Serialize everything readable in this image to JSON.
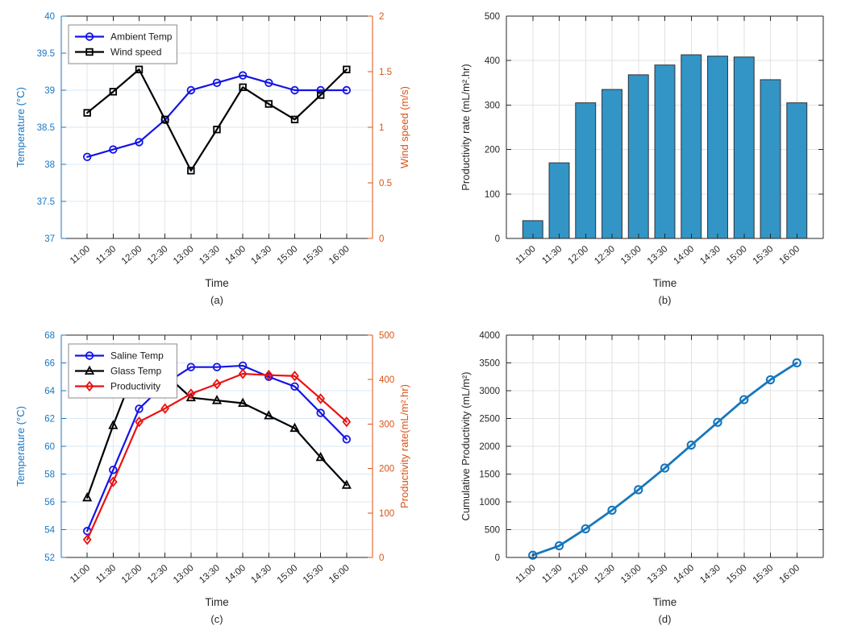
{
  "figure": {
    "background": "#ffffff",
    "panel_captions": [
      "(a)",
      "(b)",
      "(c)",
      "(d)"
    ]
  },
  "chart_data": [
    {
      "id": "a",
      "type": "line",
      "caption": "(a)",
      "xlabel": "Time",
      "grid": true,
      "legend": {
        "position": "top-left"
      },
      "categories": [
        "11:00",
        "11:30",
        "12:00",
        "12:30",
        "13:00",
        "13:30",
        "14:00",
        "14:30",
        "15:00",
        "15:30",
        "16:00"
      ],
      "axes": {
        "left": {
          "label": "Temperature (°C)",
          "min": 37,
          "max": 40,
          "step": 0.5,
          "color": "#1877C4"
        },
        "right": {
          "label": "Wind speed (m/s)",
          "min": 0,
          "max": 2,
          "step": 0.5,
          "color": "#D95319"
        }
      },
      "series": [
        {
          "name": "Ambient Temp",
          "axis": "left",
          "color": "#1414E6",
          "marker": "circle",
          "values": [
            38.1,
            38.2,
            38.3,
            38.6,
            39.0,
            39.1,
            39.2,
            39.1,
            39.0,
            39.0,
            39.0
          ]
        },
        {
          "name": "Wind speed",
          "axis": "right",
          "color": "#000000",
          "marker": "square",
          "values": [
            1.13,
            1.32,
            1.52,
            1.07,
            0.61,
            0.98,
            1.36,
            1.21,
            1.07,
            1.29,
            1.52
          ]
        }
      ]
    },
    {
      "id": "b",
      "type": "bar",
      "caption": "(b)",
      "xlabel": "Time",
      "grid": true,
      "categories": [
        "11:00",
        "11:30",
        "12:00",
        "12:30",
        "13:00",
        "13:30",
        "14:00",
        "14:30",
        "15:00",
        "15:30",
        "16:00"
      ],
      "axes": {
        "left": {
          "label": "Productivity rate (mL/m².hr)",
          "min": 0,
          "max": 500,
          "step": 100,
          "color": "#262626"
        }
      },
      "bar_style": {
        "face": "#3295C5",
        "edge": "#2E3238"
      },
      "series": [
        {
          "name": "Productivity rate",
          "axis": "left",
          "values": [
            40,
            170,
            305,
            335,
            368,
            390,
            413,
            410,
            408,
            357,
            305
          ]
        }
      ]
    },
    {
      "id": "c",
      "type": "line",
      "caption": "(c)",
      "xlabel": "Time",
      "grid": true,
      "legend": {
        "position": "top-left"
      },
      "categories": [
        "11:00",
        "11:30",
        "12:00",
        "12:30",
        "13:00",
        "13:30",
        "14:00",
        "14:30",
        "15:00",
        "15:30",
        "16:00"
      ],
      "axes": {
        "left": {
          "label": "Temperature (°C)",
          "min": 52,
          "max": 68,
          "step": 2,
          "color": "#1877C4"
        },
        "right": {
          "label": "Productivity rate(mL/m².hr)",
          "min": 0,
          "max": 500,
          "step": 100,
          "color": "#D95319"
        }
      },
      "series": [
        {
          "name": "Saline Temp",
          "axis": "left",
          "color": "#1414E6",
          "marker": "circle",
          "values": [
            53.9,
            58.3,
            62.7,
            64.5,
            65.7,
            65.7,
            65.8,
            65.0,
            64.3,
            62.4,
            60.5
          ]
        },
        {
          "name": "Glass Temp",
          "axis": "left",
          "color": "#000000",
          "marker": "triangle",
          "values": [
            56.3,
            61.5,
            66.3,
            65.2,
            63.5,
            63.3,
            63.1,
            62.2,
            61.3,
            59.2,
            57.2
          ]
        },
        {
          "name": "Productivity",
          "axis": "right",
          "color": "#EB1010",
          "marker": "diamond",
          "values": [
            40,
            170,
            305,
            335,
            368,
            390,
            413,
            410,
            408,
            357,
            305
          ]
        }
      ]
    },
    {
      "id": "d",
      "type": "line",
      "caption": "(d)",
      "xlabel": "Time",
      "grid": true,
      "categories": [
        "11:00",
        "11:30",
        "12:00",
        "12:30",
        "13:00",
        "13:30",
        "14:00",
        "14:30",
        "15:00",
        "15:30",
        "16:00"
      ],
      "axes": {
        "left": {
          "label": "Cumulative Productivity (mL/m²)",
          "min": 0,
          "max": 4000,
          "step": 500,
          "color": "#262626"
        }
      },
      "series": [
        {
          "name": "Cumulative Productivity",
          "axis": "left",
          "color": "#1777BD",
          "marker": "circle",
          "values": [
            40,
            210,
            515,
            850,
            1218,
            1608,
            2021,
            2431,
            2839,
            3196,
            3501
          ]
        }
      ]
    }
  ]
}
